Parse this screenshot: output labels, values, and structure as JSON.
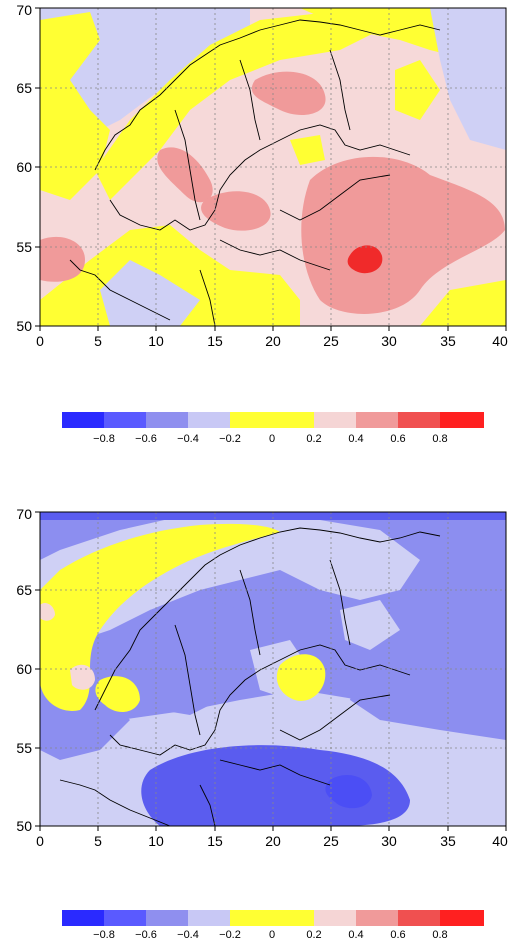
{
  "panels": [
    {
      "name": "top-map",
      "x_ticks": [
        "0",
        "5",
        "10",
        "15",
        "20",
        "25",
        "30",
        "35",
        "40"
      ],
      "y_ticks": [
        "50",
        "55",
        "60",
        "65",
        "70"
      ],
      "x_range": [
        0,
        40
      ],
      "y_range": [
        50,
        70
      ]
    },
    {
      "name": "bottom-map",
      "x_ticks": [
        "0",
        "5",
        "10",
        "15",
        "20",
        "25",
        "30",
        "35",
        "40"
      ],
      "y_ticks": [
        "50",
        "55",
        "60",
        "65",
        "70"
      ],
      "x_range": [
        0,
        40
      ],
      "y_range": [
        50,
        70
      ]
    }
  ],
  "colorbar": {
    "labels": [
      "−0.8",
      "−0.6",
      "−0.4",
      "−0.2",
      "0",
      "0.2",
      "0.4",
      "0.6",
      "0.8"
    ],
    "colors": [
      "#2a2aff",
      "#5a5aff",
      "#8f8fef",
      "#c8c8f5",
      "#ffff33",
      "#f5d5d5",
      "#f09a9a",
      "#f05050",
      "#ff2020",
      "#ff0000"
    ]
  },
  "colors": {
    "yellow": "#ffff33",
    "light_pink": "#f6d9d9",
    "pink": "#f09a9a",
    "red": "#f04040",
    "light_blue": "#cfd0f5",
    "blue": "#8c8ef0",
    "dark_blue": "#4b4ef5"
  }
}
